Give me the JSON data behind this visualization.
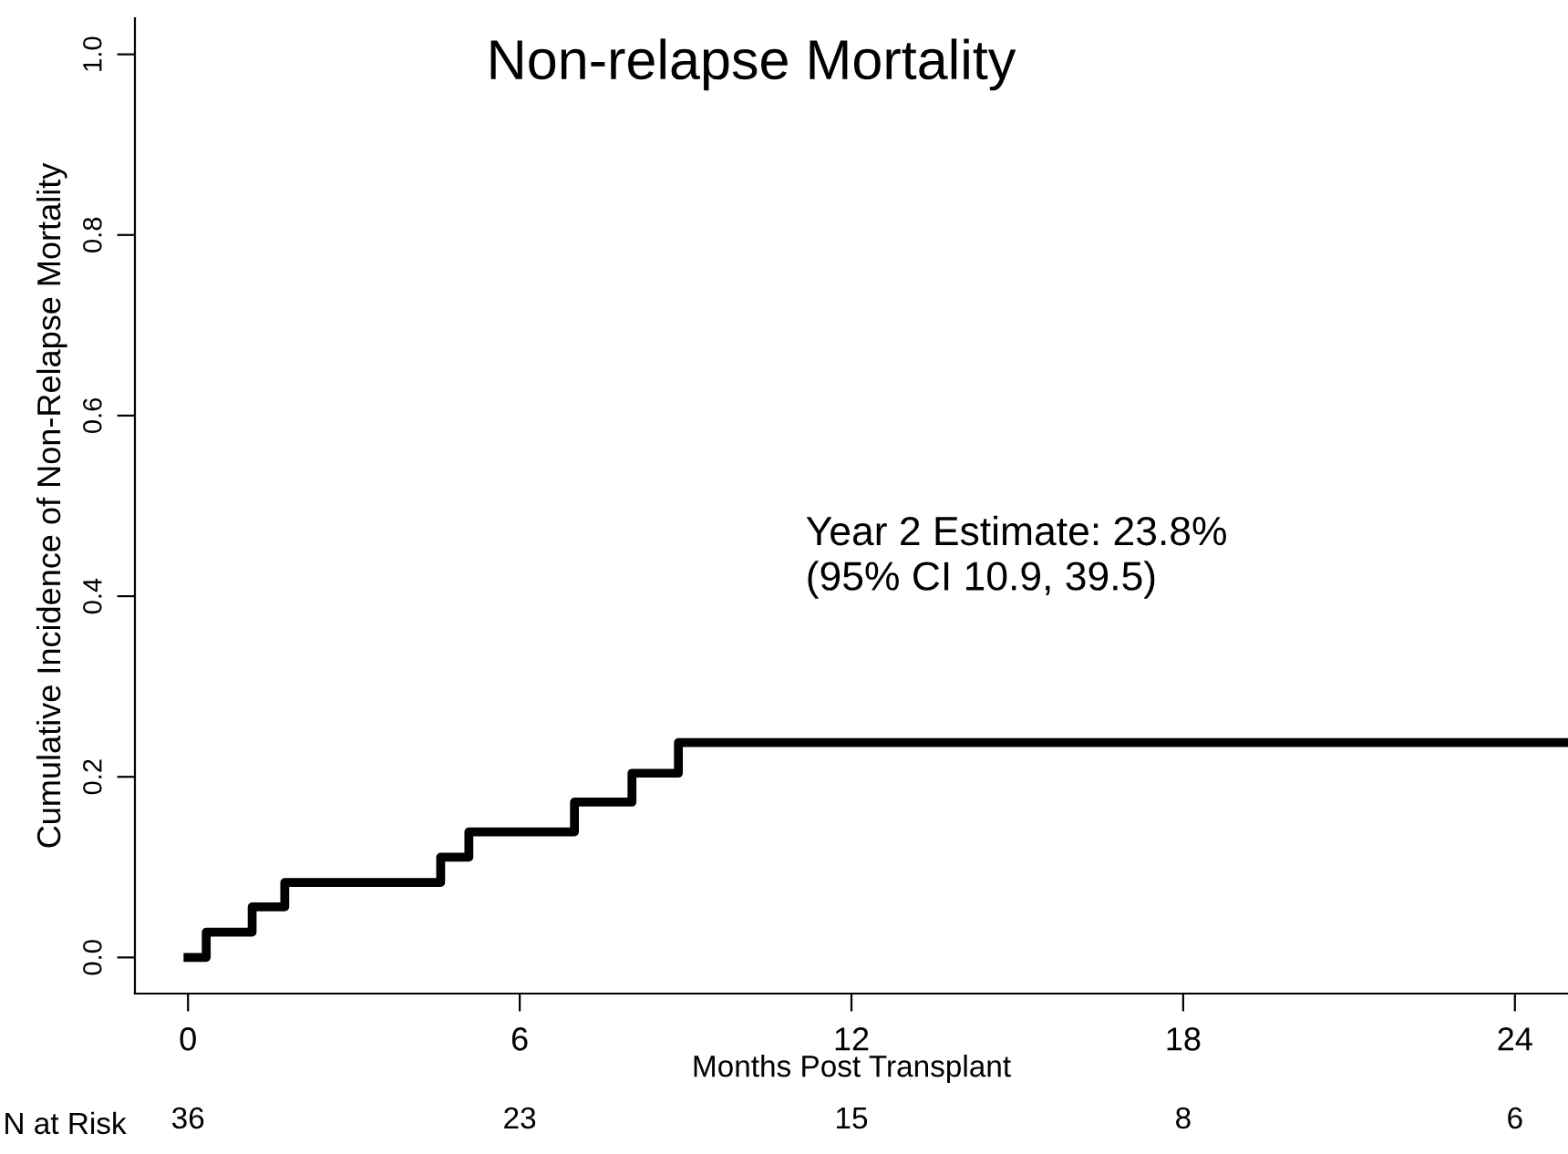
{
  "chart_data": {
    "type": "step",
    "title": "Non-relapse Mortality",
    "xlabel": "Months Post Transplant",
    "ylabel": "Cumulative Incidence of Non-Relapse Mortality",
    "x": [
      0,
      0.33,
      1.16,
      1.75,
      4.57,
      5.08,
      6.99,
      8.03,
      8.87,
      24.96
    ],
    "series": [
      {
        "color": "#000000",
        "values": [
          0,
          0.028,
          0.056,
          0.083,
          0.111,
          0.139,
          0.172,
          0.204,
          0.238,
          0.238
        ]
      }
    ],
    "xlim": [
      -0.96,
      24.96
    ],
    "xticks": [
      0,
      6,
      12,
      18,
      24
    ],
    "ylim": [
      -0.04,
      1.04
    ],
    "yticks": [
      {
        "value": 0,
        "label": "0.0"
      },
      0.2,
      0.4,
      0.6,
      0.8,
      {
        "value": 1,
        "label": "1.0"
      }
    ],
    "annotations": [
      "Year 2 Estimate: 23.8%\n(95% CI 10.9, 39.5)",
      "N at Risk",
      "36",
      "23",
      "15",
      "8",
      "6"
    ],
    "grid": false,
    "line_style": "solid",
    "marker": "none"
  }
}
